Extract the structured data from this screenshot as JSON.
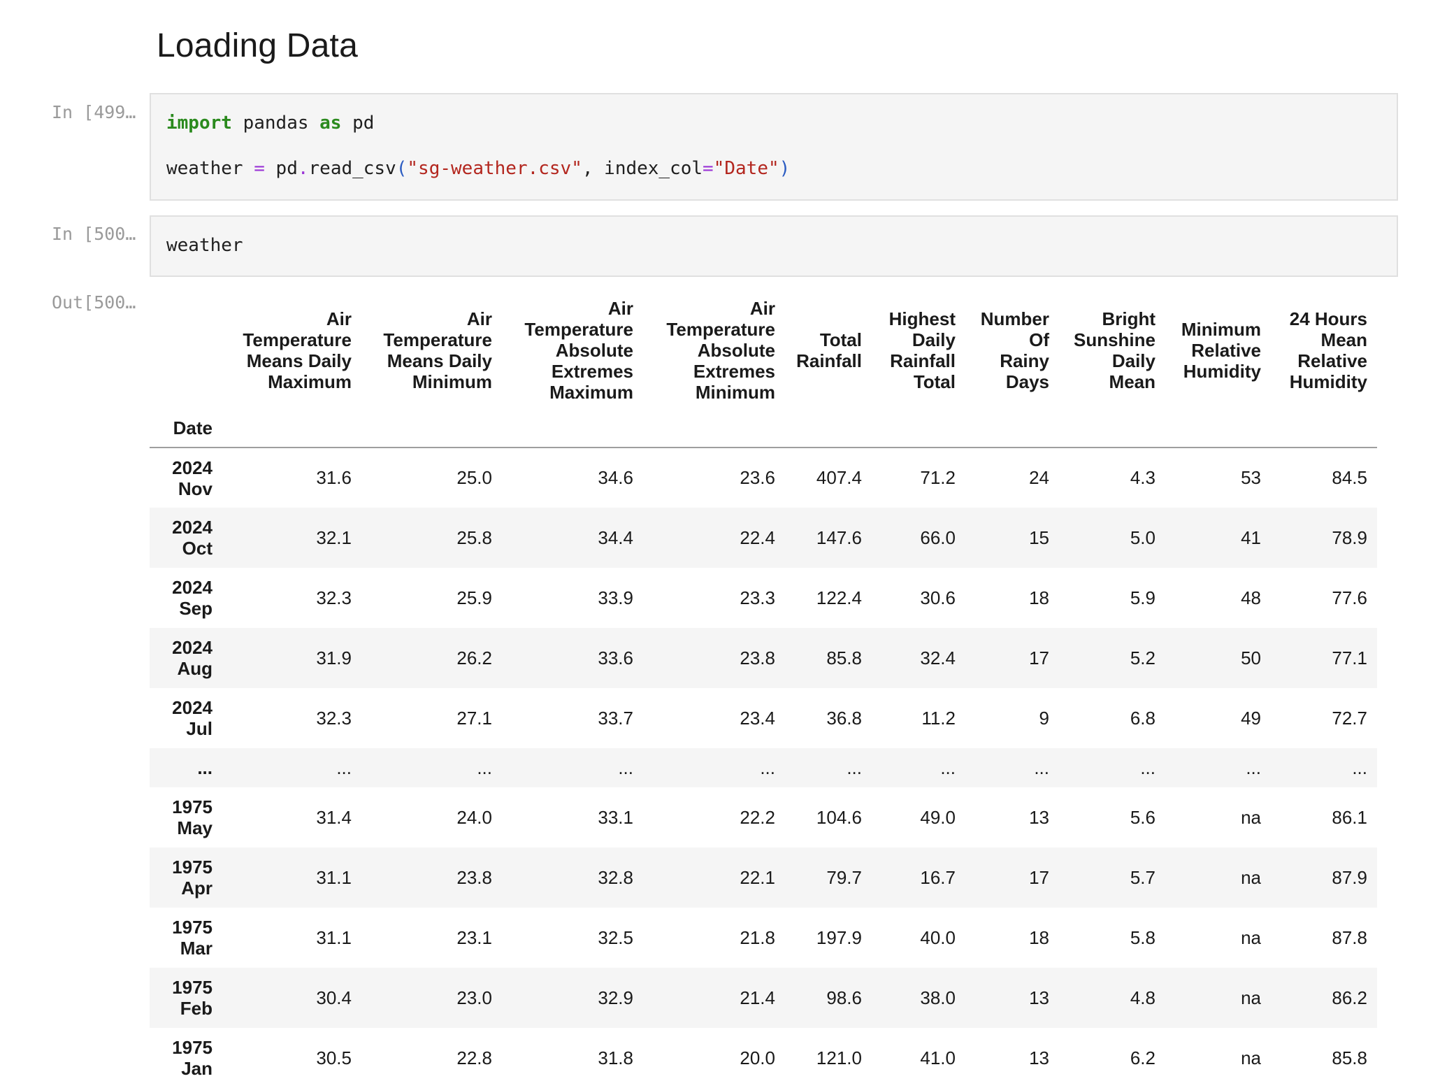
{
  "heading": "Loading Data",
  "cells": [
    {
      "prompt": "In [499…",
      "code_lines": [
        [
          "import",
          " pandas ",
          "as",
          " pd"
        ],
        [
          "weather ",
          "=",
          " pd",
          ".",
          "read_csv",
          "(",
          "\"sg-weather.csv\"",
          ", index_col",
          "=",
          "\"Date\"",
          ")"
        ]
      ]
    },
    {
      "prompt": "In [500…",
      "code": "weather"
    },
    {
      "prompt": "Out[500…"
    }
  ],
  "table": {
    "index_name": "Date",
    "columns": [
      "Air Temperature Means Daily Maximum",
      "Air Temperature Means Daily Minimum",
      "Air Temperature Absolute Extremes Maximum",
      "Air Temperature Absolute Extremes Minimum",
      "Total Rainfall",
      "Highest Daily Rainfall Total",
      "Number Of Rainy Days",
      "Bright Sunshine Daily Mean",
      "Minimum Relative Humidity",
      "24 Hours Mean Relative Humidity"
    ],
    "rows": [
      {
        "year": "2024",
        "month": "Nov",
        "values": [
          "31.6",
          "25.0",
          "34.6",
          "23.6",
          "407.4",
          "71.2",
          "24",
          "4.3",
          "53",
          "84.5"
        ]
      },
      {
        "year": "2024",
        "month": "Oct",
        "values": [
          "32.1",
          "25.8",
          "34.4",
          "22.4",
          "147.6",
          "66.0",
          "15",
          "5.0",
          "41",
          "78.9"
        ]
      },
      {
        "year": "2024",
        "month": "Sep",
        "values": [
          "32.3",
          "25.9",
          "33.9",
          "23.3",
          "122.4",
          "30.6",
          "18",
          "5.9",
          "48",
          "77.6"
        ]
      },
      {
        "year": "2024",
        "month": "Aug",
        "values": [
          "31.9",
          "26.2",
          "33.6",
          "23.8",
          "85.8",
          "32.4",
          "17",
          "5.2",
          "50",
          "77.1"
        ]
      },
      {
        "year": "2024",
        "month": "Jul",
        "values": [
          "32.3",
          "27.1",
          "33.7",
          "23.4",
          "36.8",
          "11.2",
          "9",
          "6.8",
          "49",
          "72.7"
        ]
      },
      {
        "ellipsis": true,
        "index": "...",
        "values": [
          "...",
          "...",
          "...",
          "...",
          "...",
          "...",
          "...",
          "...",
          "...",
          "..."
        ]
      },
      {
        "year": "1975",
        "month": "May",
        "values": [
          "31.4",
          "24.0",
          "33.1",
          "22.2",
          "104.6",
          "49.0",
          "13",
          "5.6",
          "na",
          "86.1"
        ]
      },
      {
        "year": "1975",
        "month": "Apr",
        "values": [
          "31.1",
          "23.8",
          "32.8",
          "22.1",
          "79.7",
          "16.7",
          "17",
          "5.7",
          "na",
          "87.9"
        ]
      },
      {
        "year": "1975",
        "month": "Mar",
        "values": [
          "31.1",
          "23.1",
          "32.5",
          "21.8",
          "197.9",
          "40.0",
          "18",
          "5.8",
          "na",
          "87.8"
        ]
      },
      {
        "year": "1975",
        "month": "Feb",
        "values": [
          "30.4",
          "23.0",
          "32.9",
          "21.4",
          "98.6",
          "38.0",
          "13",
          "4.8",
          "na",
          "86.2"
        ]
      },
      {
        "year": "1975",
        "month": "Jan",
        "values": [
          "30.5",
          "22.8",
          "31.8",
          "20.0",
          "121.0",
          "41.0",
          "13",
          "6.2",
          "na",
          "85.8"
        ]
      }
    ]
  }
}
